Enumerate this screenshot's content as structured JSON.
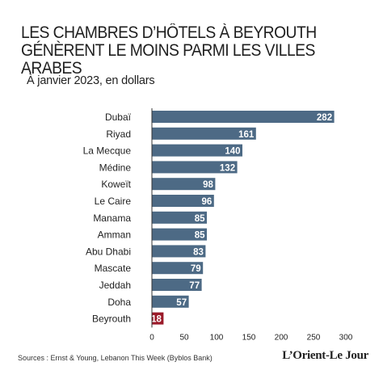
{
  "header": {
    "title_line1": "LES CHAMBRES D’HÔTELS À BEYROUTH",
    "title_line2": "GÉNÈRENT LE MOINS PARMI LES VILLES ARABES",
    "subtitle": "À janvier 2023, en dollars"
  },
  "footer": {
    "source": "Sources : Ernst & Young, Lebanon This Week (Byblos Bank)",
    "logo": "L’Orient-Le Jour"
  },
  "colors": {
    "bar": "#4d6a85",
    "highlight": "#9b1b2a",
    "label_text": "#ffffff"
  },
  "chart_data": {
    "type": "bar",
    "orientation": "horizontal",
    "categories": [
      "Dubaï",
      "Riyad",
      "La Mecque",
      "Médine",
      "Koweït",
      "Le Caire",
      "Manama",
      "Amman",
      "Abu Dhabi",
      "Mascate",
      "Jeddah",
      "Doha",
      "Beyrouth"
    ],
    "values": [
      282,
      161,
      140,
      132,
      98,
      96,
      85,
      85,
      83,
      79,
      77,
      57,
      18
    ],
    "highlight_category": "Beyrouth",
    "xlim": [
      0,
      300
    ],
    "xticks": [
      0,
      50,
      100,
      150,
      200,
      250,
      300
    ],
    "grid": false,
    "data_labels": true
  }
}
